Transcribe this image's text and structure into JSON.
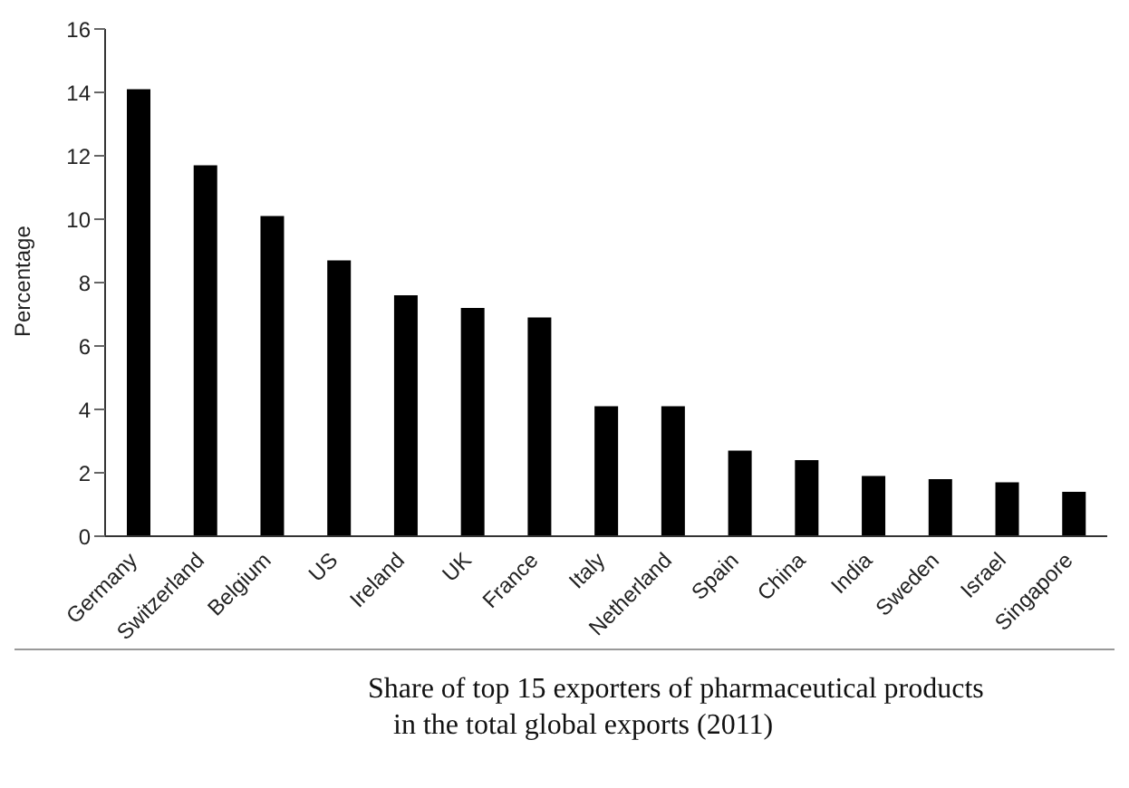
{
  "chart_data": {
    "type": "bar",
    "title": "Share of top 15 exporters of pharmaceutical products\nin the total global exports (2011)",
    "ylabel": "Percentage",
    "categories": [
      "Germany",
      "Switzerland",
      "Belgium",
      "US",
      "Ireland",
      "UK",
      "France",
      "Italy",
      "Netherland",
      "Spain",
      "China",
      "India",
      "Sweden",
      "Israel",
      "Singapore"
    ],
    "values": [
      14.1,
      11.7,
      10.1,
      8.7,
      7.6,
      7.2,
      6.9,
      4.1,
      4.1,
      2.7,
      2.4,
      1.9,
      1.8,
      1.7,
      1.4
    ],
    "color": "#000000",
    "ylim": [
      0,
      16
    ],
    "yticks": [
      0,
      2,
      4,
      6,
      8,
      10,
      12,
      14,
      16
    ],
    "grid": false,
    "legend": false
  }
}
